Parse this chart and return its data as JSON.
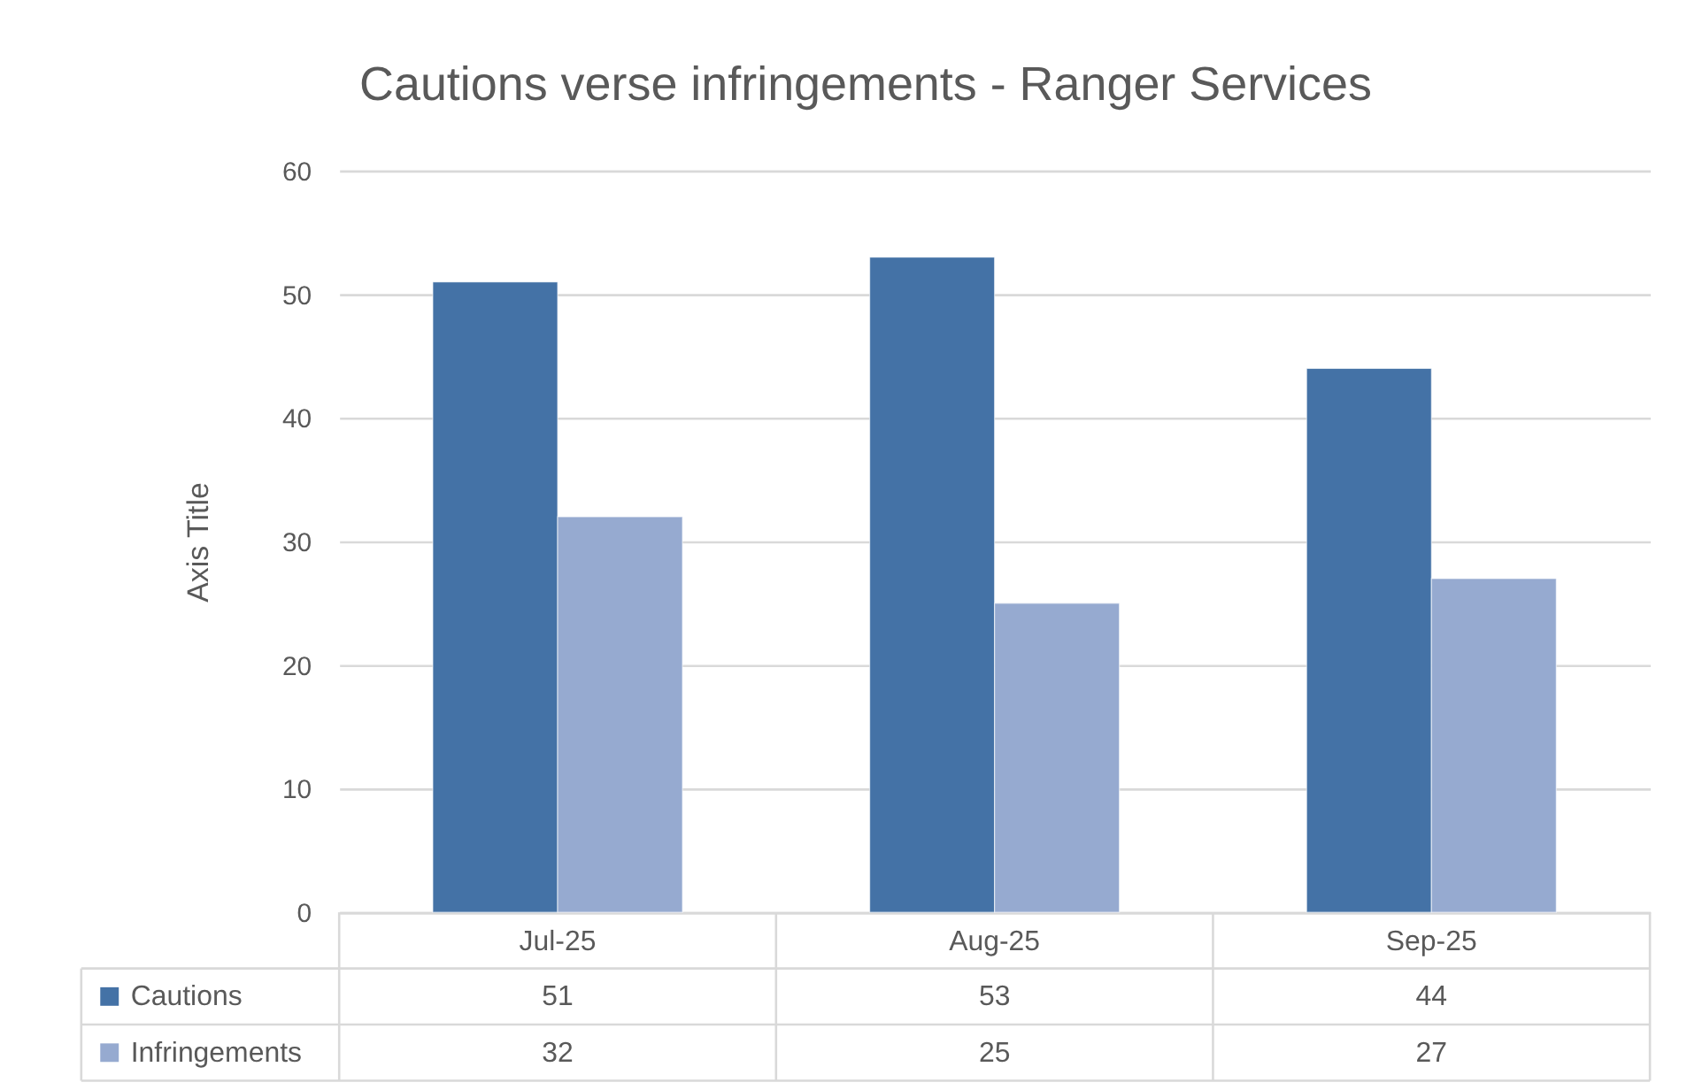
{
  "chart_data": {
    "type": "bar",
    "title": "Cautions verse infringements - Ranger Services",
    "ylabel": "Axis Title",
    "categories": [
      "Jul-25",
      "Aug-25",
      "Sep-25"
    ],
    "series": [
      {
        "name": "Cautions",
        "color": "#4472a6",
        "values": [
          51,
          53,
          44
        ]
      },
      {
        "name": "Infringements",
        "color": "#96aad0",
        "values": [
          32,
          25,
          27
        ]
      }
    ],
    "ylim": [
      0,
      60
    ],
    "yticks": [
      0,
      10,
      20,
      30,
      40,
      50,
      60
    ],
    "grid": "y",
    "legend": "bottom left",
    "data_labels": true
  }
}
